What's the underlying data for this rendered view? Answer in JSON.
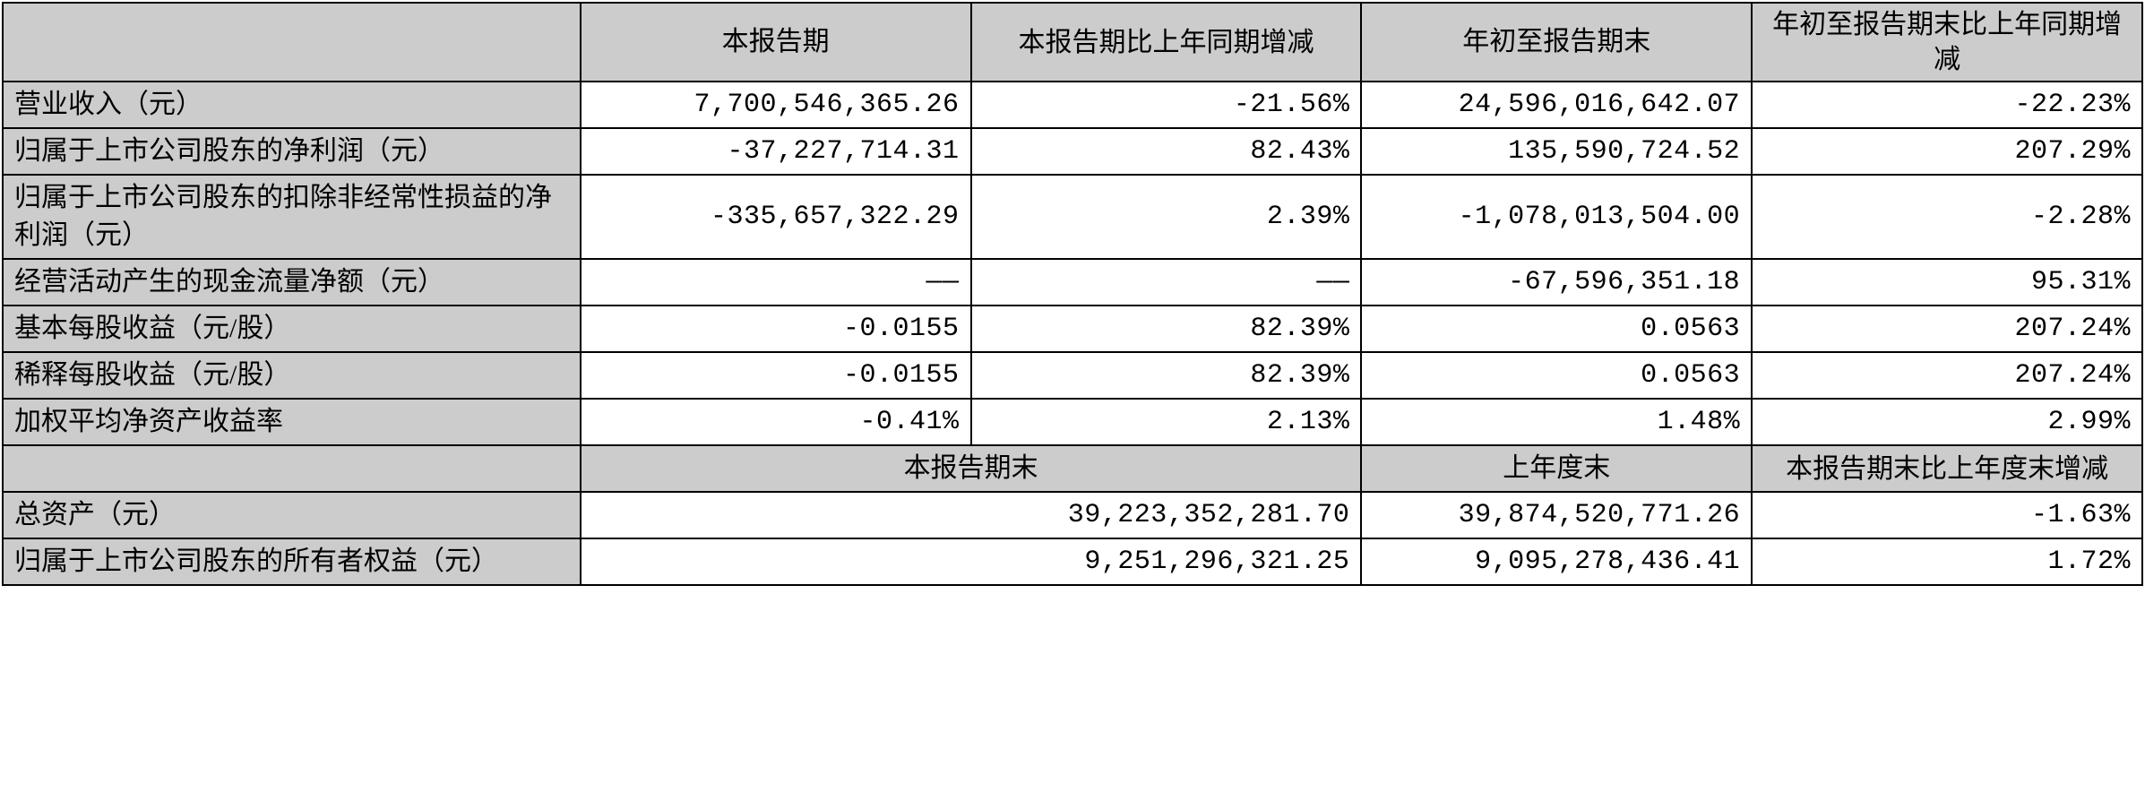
{
  "headers": {
    "row1": {
      "blank": "",
      "col1": "本报告期",
      "col2": "本报告期比上年同期增减",
      "col3": "年初至报告期末",
      "col4": "年初至报告期末比上年同期增减"
    },
    "row2": {
      "blank": "",
      "col1": "本报告期末",
      "col2": "上年度末",
      "col3": "本报告期末比上年度末增减"
    }
  },
  "section1": {
    "rows": [
      {
        "label": "营业收入（元）",
        "v1": "7,700,546,365.26",
        "v2": "-21.56%",
        "v3": "24,596,016,642.07",
        "v4": "-22.23%"
      },
      {
        "label": "归属于上市公司股东的净利润（元）",
        "v1": "-37,227,714.31",
        "v2": "82.43%",
        "v3": "135,590,724.52",
        "v4": "207.29%"
      },
      {
        "label": "归属于上市公司股东的扣除非经常性损益的净利润（元）",
        "v1": "-335,657,322.29",
        "v2": "2.39%",
        "v3": "-1,078,013,504.00",
        "v4": "-2.28%",
        "wrap": true
      },
      {
        "label": "经营活动产生的现金流量净额（元）",
        "v1": "——",
        "v2": "——",
        "v3": "-67,596,351.18",
        "v4": "95.31%"
      },
      {
        "label": "基本每股收益（元/股）",
        "v1": "-0.0155",
        "v2": "82.39%",
        "v3": "0.0563",
        "v4": "207.24%"
      },
      {
        "label": "稀释每股收益（元/股）",
        "v1": "-0.0155",
        "v2": "82.39%",
        "v3": "0.0563",
        "v4": "207.24%"
      },
      {
        "label": "加权平均净资产收益率",
        "v1": "-0.41%",
        "v2": "2.13%",
        "v3": "1.48%",
        "v4": "2.99%"
      }
    ]
  },
  "section2": {
    "rows": [
      {
        "label": "总资产（元）",
        "v1": "39,223,352,281.70",
        "v2": "39,874,520,771.26",
        "v3": "-1.63%"
      },
      {
        "label": "归属于上市公司股东的所有者权益（元）",
        "v1": "9,251,296,321.25",
        "v2": "9,095,278,436.41",
        "v3": "1.72%",
        "wrap": true
      }
    ]
  },
  "styling": {
    "header_bg": "#cccccc",
    "data_bg": "#ffffff",
    "border_color": "#000000",
    "border_width": 2,
    "font_size": 30,
    "label_align": "left",
    "header_align": "center",
    "data_align": "right"
  }
}
